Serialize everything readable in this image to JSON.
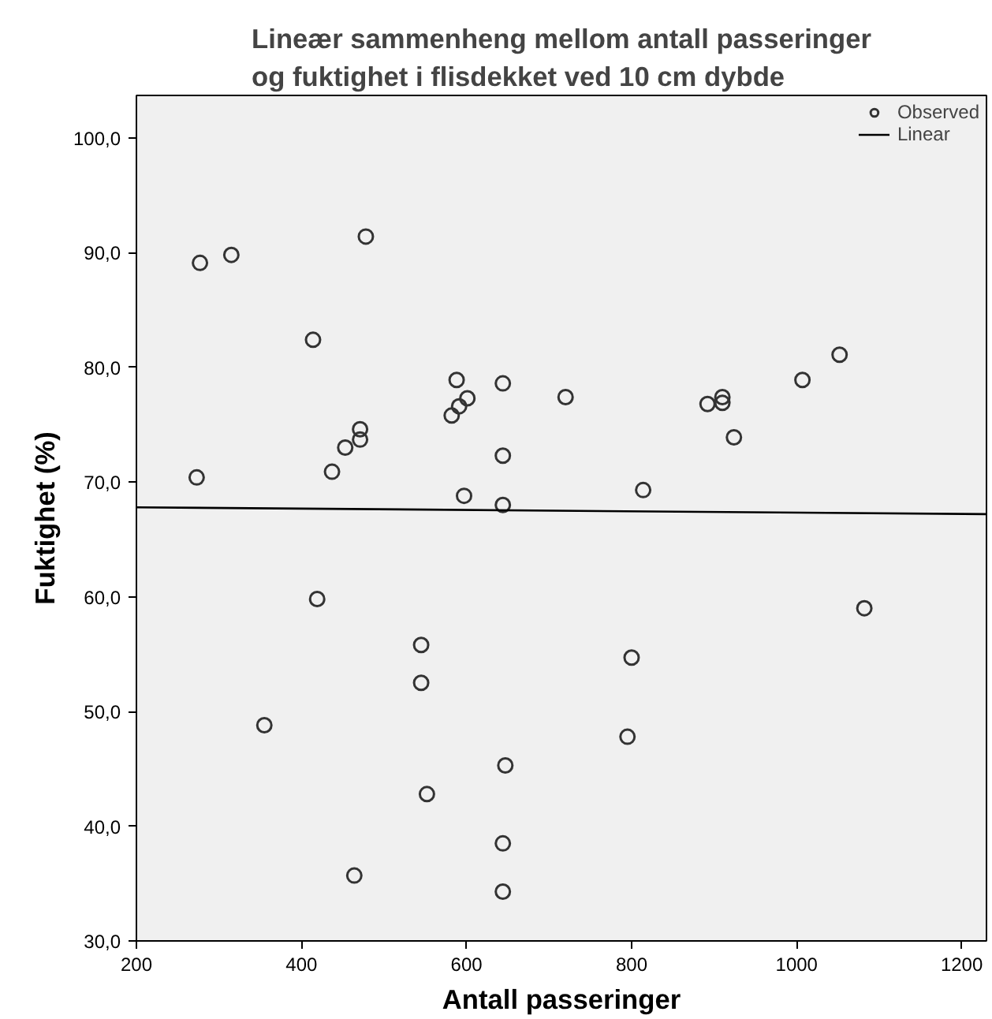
{
  "chart_data": {
    "type": "scatter",
    "title": "Lineær sammenheng mellom antall passeringer\nog fuktighet i flisdekket ved 10 cm dybde",
    "xlabel": "Antall passeringer",
    "ylabel": "Fuktighet (%)",
    "xlim": [
      200,
      1230
    ],
    "xticks": [
      200,
      400,
      600,
      800,
      1000,
      1200
    ],
    "ylim": [
      30,
      103.7
    ],
    "yticks": [
      {
        "value": 30,
        "label": "30,0"
      },
      {
        "value": 40,
        "label": "40,0"
      },
      {
        "value": 50,
        "label": "50,0"
      },
      {
        "value": 60,
        "label": "60,0"
      },
      {
        "value": 70,
        "label": "70,0"
      },
      {
        "value": 80,
        "label": "80,0"
      },
      {
        "value": 90,
        "label": "90,0"
      },
      {
        "value": 100,
        "label": "100,0"
      }
    ],
    "grid": false,
    "legend": "top right",
    "series": [
      {
        "name": "Observed",
        "marker": "circle",
        "color": "#333333",
        "x": [
          277,
          315,
          478,
          414,
          273,
          437,
          453,
          471,
          471,
          588,
          582,
          591,
          601,
          644,
          644,
          597,
          644,
          720,
          892,
          910,
          910,
          924,
          1007,
          1052,
          814,
          419,
          545,
          545,
          355,
          647,
          552,
          464,
          644,
          644,
          1082,
          800,
          795
        ],
        "values": [
          89.1,
          89.8,
          91.4,
          82.4,
          70.4,
          70.9,
          73.0,
          74.6,
          73.7,
          78.9,
          75.8,
          76.6,
          77.3,
          78.6,
          72.3,
          68.8,
          68.0,
          77.4,
          76.8,
          77.4,
          76.9,
          73.9,
          78.9,
          81.1,
          69.3,
          59.8,
          55.8,
          52.5,
          48.8,
          45.3,
          42.8,
          35.7,
          38.5,
          34.3,
          59.0,
          54.7,
          47.8
        ]
      },
      {
        "name": "Linear",
        "type": "line",
        "color": "#000000",
        "line_style": "solid",
        "x": [
          200,
          1230
        ],
        "values": [
          67.8,
          67.2
        ]
      }
    ]
  }
}
